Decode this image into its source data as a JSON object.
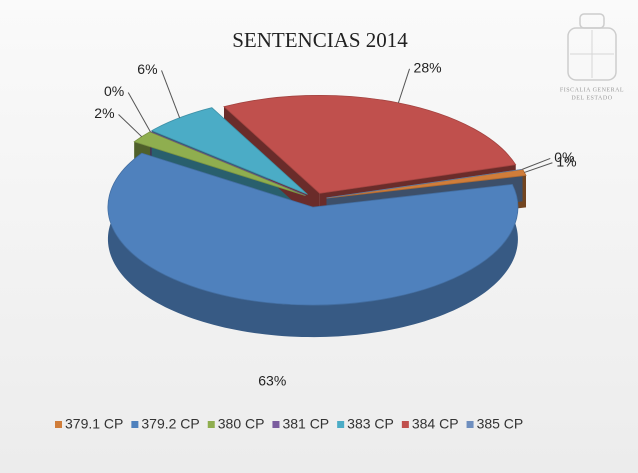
{
  "chart_data": {
    "type": "pie3d",
    "title": "SENTENCIAS 2014",
    "categories": [
      "379.1 CP",
      "379.2 CP",
      "380 CP",
      "381 CP",
      "383 CP",
      "384 CP",
      "385 CP"
    ],
    "values": [
      1,
      63,
      2,
      0,
      6,
      28,
      0
    ],
    "value_labels": [
      "1%",
      "63%",
      "2%",
      "0%",
      "6%",
      "28%",
      "0%"
    ],
    "colors": [
      "#d07d3a",
      "#4f81bd",
      "#8fae4f",
      "#7a5c9e",
      "#4bacc6",
      "#c0504d",
      "#6f8fbf"
    ],
    "legend": "bottom"
  },
  "logo_text": [
    "FISCALIA GENERAL",
    "DEL ESTADO"
  ]
}
